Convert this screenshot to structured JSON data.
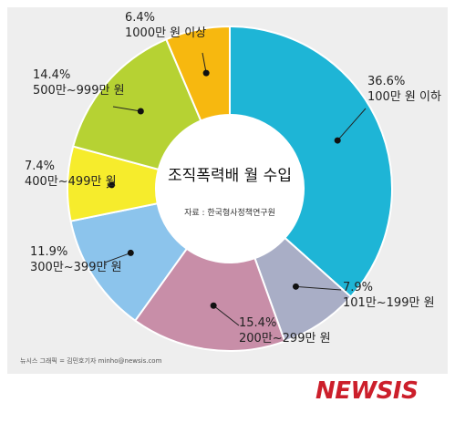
{
  "chart_data": {
    "type": "pie",
    "title": "조직폭력배 월 수입",
    "source": "자료 : 한국형사정책연구원",
    "slices": [
      {
        "pct_label": "36.6%",
        "range_label": "100만 원 이하",
        "value": 36.6,
        "color": "#1eb5d6"
      },
      {
        "pct_label": "7.9%",
        "range_label": "101만~199만 원",
        "value": 7.9,
        "color": "#a9aec6"
      },
      {
        "pct_label": "15.4%",
        "range_label": "200만~299만 원",
        "value": 15.4,
        "color": "#c88ea8"
      },
      {
        "pct_label": "11.9%",
        "range_label": "300만~399만 원",
        "value": 11.9,
        "color": "#8cc4ec"
      },
      {
        "pct_label": "7.4%",
        "range_label": "400만~499만 원",
        "value": 7.4,
        "color": "#f6ec2c"
      },
      {
        "pct_label": "14.4%",
        "range_label": "500만~999만 원",
        "value": 14.4,
        "color": "#b6d233"
      },
      {
        "pct_label": "6.4%",
        "range_label": "1000만 원 이상",
        "value": 6.4,
        "color": "#f7b80f"
      }
    ]
  },
  "credit": "뉴시스 그래픽 = 김민호기자 minho@newsis.com",
  "logo": "NEWSIS"
}
